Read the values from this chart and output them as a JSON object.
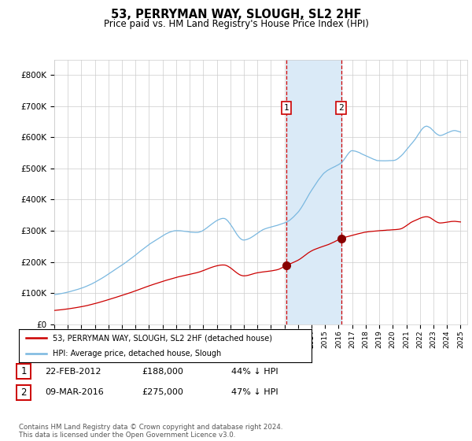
{
  "title": "53, PERRYMAN WAY, SLOUGH, SL2 2HF",
  "subtitle": "Price paid vs. HM Land Registry's House Price Index (HPI)",
  "legend_entries": [
    "53, PERRYMAN WAY, SLOUGH, SL2 2HF (detached house)",
    "HPI: Average price, detached house, Slough"
  ],
  "transactions": [
    {
      "label": "1",
      "date": "22-FEB-2012",
      "price": 188000,
      "pct": "44% ↓ HPI"
    },
    {
      "label": "2",
      "date": "09-MAR-2016",
      "price": 275000,
      "pct": "47% ↓ HPI"
    }
  ],
  "footnote": "Contains HM Land Registry data © Crown copyright and database right 2024.\nThis data is licensed under the Open Government Licence v3.0.",
  "hpi_color": "#7ab8e0",
  "price_color": "#cc0000",
  "marker_color": "#880000",
  "vline_color": "#cc0000",
  "shade_color": "#daeaf7",
  "grid_color": "#cccccc",
  "bg_color": "#ffffff",
  "ylim": [
    0,
    850000
  ],
  "yticks": [
    0,
    100000,
    200000,
    300000,
    400000,
    500000,
    600000,
    700000,
    800000
  ],
  "ytick_labels": [
    "£0",
    "£100K",
    "£200K",
    "£300K",
    "£400K",
    "£500K",
    "£600K",
    "£700K",
    "£800K"
  ],
  "start_year": 1995,
  "end_year": 2025,
  "transaction1_year": 2012.13,
  "transaction2_year": 2016.18,
  "transaction1_price": 188000,
  "transaction2_price": 275000
}
